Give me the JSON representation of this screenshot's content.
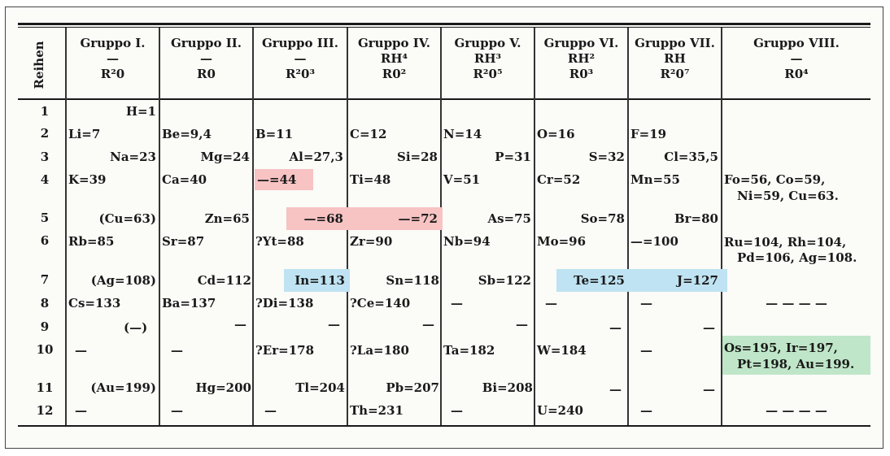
{
  "reihen_label": "Reihen",
  "groups": [
    {
      "name": "Gruppo I.",
      "mid": "—",
      "formula": "R²0"
    },
    {
      "name": "Gruppo II.",
      "mid": "—",
      "formula": "R0"
    },
    {
      "name": "Gruppo III.",
      "mid": "—",
      "formula": "R²0³"
    },
    {
      "name": "Gruppo IV.",
      "mid": "RH⁴",
      "formula": "R0²"
    },
    {
      "name": "Gruppo V.",
      "mid": "RH³",
      "formula": "R²0⁵"
    },
    {
      "name": "Gruppo VI.",
      "mid": "RH²",
      "formula": "R0³"
    },
    {
      "name": "Gruppo VII.",
      "mid": "RH",
      "formula": "R²0⁷"
    },
    {
      "name": "Gruppo VIII.",
      "mid": "—",
      "formula": "R0⁴"
    }
  ],
  "row_numbers": [
    "1",
    "2",
    "3",
    "4",
    "5",
    "6",
    "7",
    "8",
    "9",
    "10",
    "11",
    "12"
  ],
  "cells": {
    "r1_g1": "H=1",
    "r2_g1": "Li=7",
    "r2_g2": "Be=9,4",
    "r2_g3": "B=11",
    "r2_g4": "C=12",
    "r2_g5": "N=14",
    "r2_g6": "O=16",
    "r2_g7": "F=19",
    "r3_g1": "Na=23",
    "r3_g2": "Mg=24",
    "r3_g3": "Al=27,3",
    "r3_g4": "Si=28",
    "r3_g5": "P=31",
    "r3_g6": "S=32",
    "r3_g7": "Cl=35,5",
    "r4_g1": "K=39",
    "r4_g2": "Ca=40",
    "r4_g3": "—=44",
    "r4_g4": "Ti=48",
    "r4_g5": "V=51",
    "r4_g6": "Cr=52",
    "r4_g7": "Mn=55",
    "r4_g8a": "Fo=56, Co=59,",
    "r4_g8b": "Ni=59, Cu=63.",
    "r5_g1": "(Cu=63)",
    "r5_g2": "Zn=65",
    "r5_g3": "—=68",
    "r5_g4": "—=72",
    "r5_g5": "As=75",
    "r5_g6": "So=78",
    "r5_g7": "Br=80",
    "r6_g1": "Rb=85",
    "r6_g2": "Sr=87",
    "r6_g3": "?Yt=88",
    "r6_g4": "Zr=90",
    "r6_g5": "Nb=94",
    "r6_g6": "Mo=96",
    "r6_g7": "—=100",
    "r6_g8a": "Ru=104, Rh=104,",
    "r6_g8b": "Pd=106, Ag=108.",
    "r7_g1": "(Ag=108)",
    "r7_g2": "Cd=112",
    "r7_g3": "In=113",
    "r7_g4": "Sn=118",
    "r7_g5": "Sb=122",
    "r7_g6": "Te=125",
    "r7_g7": "J=127",
    "r8_g1": "Cs=133",
    "r8_g2": "Ba=137",
    "r8_g3": "?Di=138",
    "r8_g4": "?Ce=140",
    "r8_g5": "—",
    "r8_g6": "—",
    "r8_g7": "—",
    "r8_g8": "— — — —",
    "r9_g1": "(—)",
    "r9_g2": "—",
    "r9_g3": "—",
    "r9_g4": "—",
    "r9_g5": "—",
    "r9_g6": "—",
    "r9_g7": "—",
    "r10_g1": "—",
    "r10_g2": "—",
    "r10_g3": "?Er=178",
    "r10_g4": "?La=180",
    "r10_g5": "Ta=182",
    "r10_g6": "W=184",
    "r10_g7": "—",
    "r10_g8a": "Os=195, Ir=197,",
    "r10_g8b": "Pt=198, Au=199.",
    "r11_g1": "(Au=199)",
    "r11_g2": "Hg=200",
    "r11_g3": "Tl=204",
    "r11_g4": "Pb=207",
    "r11_g5": "Bi=208",
    "r11_g6": "—",
    "r11_g7": "—",
    "r12_g1": "—",
    "r12_g2": "—",
    "r12_g3": "—",
    "r12_g4": "Th=231",
    "r12_g5": "—",
    "r12_g6": "U=240",
    "r12_g7": "—",
    "r12_g8": "— — — —"
  },
  "colors": {
    "highlight_red": "#f7c3c3",
    "highlight_blue": "#bfe3f2",
    "highlight_green": "#bfe6c8"
  }
}
